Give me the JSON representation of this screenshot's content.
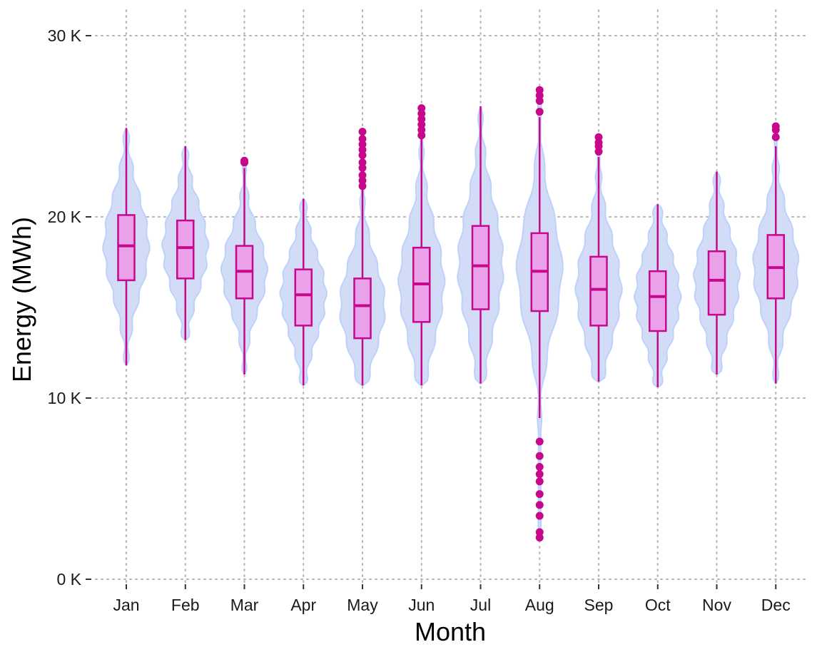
{
  "chart_data": {
    "type": "violin",
    "xlabel": "Month",
    "ylabel": "Energy (MWh)",
    "ylim": [
      0,
      30000
    ],
    "yticks": [
      0,
      10000,
      20000,
      30000
    ],
    "ytick_labels": [
      "0 K",
      "10 K",
      "20 K",
      "30 K"
    ],
    "grid": true,
    "categories": [
      "Jan",
      "Feb",
      "Mar",
      "Apr",
      "May",
      "Jun",
      "Jul",
      "Aug",
      "Sep",
      "Oct",
      "Nov",
      "Dec"
    ],
    "boxes": [
      {
        "month": "Jan",
        "min": 11800,
        "q1": 16500,
        "median": 18400,
        "q3": 20100,
        "max": 24900,
        "outliers": []
      },
      {
        "month": "Feb",
        "min": 13200,
        "q1": 16600,
        "median": 18300,
        "q3": 19800,
        "max": 23900,
        "outliers": []
      },
      {
        "month": "Mar",
        "min": 11300,
        "q1": 15500,
        "median": 17000,
        "q3": 18400,
        "max": 22700,
        "outliers": [
          23000,
          23100
        ]
      },
      {
        "month": "Apr",
        "min": 10700,
        "q1": 14000,
        "median": 15700,
        "q3": 17100,
        "max": 21000,
        "outliers": []
      },
      {
        "month": "May",
        "min": 10700,
        "q1": 13300,
        "median": 15100,
        "q3": 16600,
        "max": 21500,
        "outliers": [
          21700,
          22000,
          22300,
          22700,
          23000,
          23400,
          23700,
          24000,
          24300,
          24700
        ]
      },
      {
        "month": "Jun",
        "min": 10700,
        "q1": 14200,
        "median": 16300,
        "q3": 18300,
        "max": 24300,
        "outliers": [
          24500,
          24800,
          25100,
          25400,
          25700,
          26000
        ]
      },
      {
        "month": "Jul",
        "min": 10800,
        "q1": 14900,
        "median": 17300,
        "q3": 19500,
        "max": 26100,
        "outliers": []
      },
      {
        "month": "Aug",
        "min": 8900,
        "q1": 14800,
        "median": 17000,
        "q3": 19100,
        "max": 25500,
        "outliers": [
          25800,
          26400,
          26700,
          27000,
          7600,
          6800,
          6200,
          5800,
          5400,
          4700,
          4100,
          3500,
          2600,
          2300
        ]
      },
      {
        "month": "Sep",
        "min": 10900,
        "q1": 14000,
        "median": 16000,
        "q3": 17800,
        "max": 23300,
        "outliers": [
          23600,
          23900,
          24100,
          24400
        ]
      },
      {
        "month": "Oct",
        "min": 10600,
        "q1": 13700,
        "median": 15600,
        "q3": 17000,
        "max": 20700,
        "outliers": []
      },
      {
        "month": "Nov",
        "min": 11300,
        "q1": 14600,
        "median": 16500,
        "q3": 18100,
        "max": 22500,
        "outliers": []
      },
      {
        "month": "Dec",
        "min": 10800,
        "q1": 15500,
        "median": 17200,
        "q3": 19000,
        "max": 23900,
        "outliers": [
          24400,
          24800,
          25000
        ]
      }
    ],
    "colors": {
      "violin_fill": "#d3dcf6",
      "violin_stroke": "#bcd2fa",
      "box_fill": "#eaa1ea",
      "box_stroke": "#c8088c",
      "outlier": "#c8088c",
      "grid": "#b3b3b3"
    }
  }
}
